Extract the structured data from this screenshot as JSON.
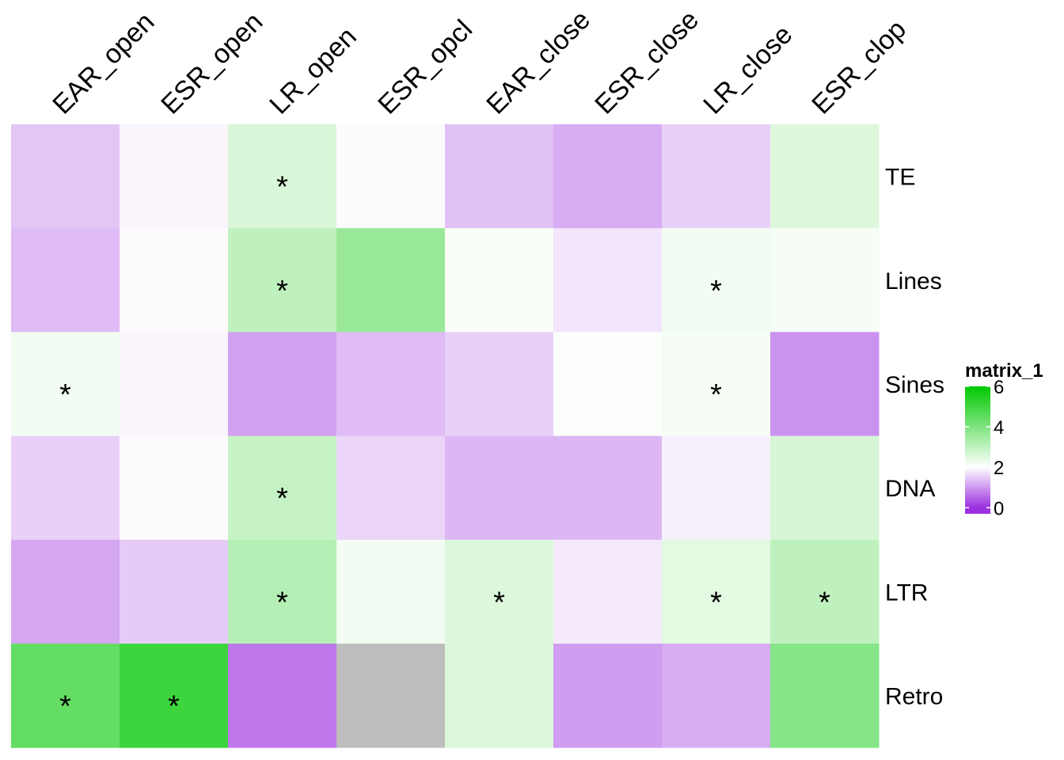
{
  "chart_data": {
    "type": "heatmap",
    "columns": [
      "EAR_open",
      "ESR_open",
      "LR_open",
      "ESR_opcl",
      "EAR_close",
      "ESR_close",
      "LR_close",
      "ESR_clop"
    ],
    "rows": [
      "TE",
      "Lines",
      "Sines",
      "DNA",
      "LTR",
      "Retro"
    ],
    "values": [
      [
        1.45,
        1.9,
        2.6,
        1.95,
        1.4,
        1.2,
        1.55,
        2.55
      ],
      [
        1.35,
        1.95,
        3.0,
        3.6,
        2.1,
        1.75,
        2.2,
        2.15
      ],
      [
        2.2,
        1.9,
        1.1,
        1.35,
        1.55,
        2.05,
        2.15,
        0.95
      ],
      [
        1.55,
        1.95,
        2.9,
        1.6,
        1.3,
        1.3,
        1.85,
        2.65
      ],
      [
        1.15,
        1.5,
        3.15,
        2.2,
        2.55,
        1.8,
        2.45,
        3.0
      ],
      [
        4.45,
        5.05,
        0.7,
        null,
        2.55,
        1.05,
        1.2,
        3.9
      ]
    ],
    "significance": [
      [
        "",
        "",
        "*",
        "",
        "",
        "",
        "",
        ""
      ],
      [
        "",
        "",
        "*",
        "",
        "",
        "",
        "*",
        ""
      ],
      [
        "*",
        "",
        "",
        "",
        "",
        "",
        "*",
        ""
      ],
      [
        "",
        "",
        "*",
        "",
        "",
        "",
        "",
        ""
      ],
      [
        "",
        "",
        "*",
        "",
        "*",
        "",
        "*",
        "*"
      ],
      [
        "*",
        "*",
        "",
        "",
        "",
        "",
        "",
        ""
      ]
    ],
    "na_color": "#BEBEBE",
    "legend": {
      "title": "matrix_1",
      "ticks": [
        6,
        4,
        2,
        0
      ],
      "range": [
        -0.3,
        6.0
      ],
      "colors": [
        {
          "value": 0.0,
          "color": "#9B30E0"
        },
        {
          "value": 2.0,
          "color": "#FFFFFF"
        },
        {
          "value": 6.0,
          "color": "#00C800"
        }
      ]
    }
  }
}
